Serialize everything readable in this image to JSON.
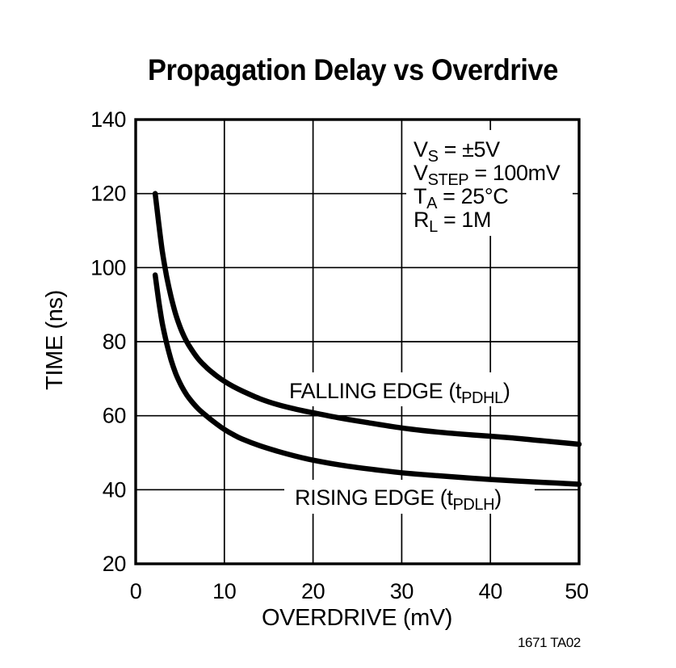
{
  "page": {
    "background": "#ffffff",
    "ink": "#000000"
  },
  "title": "Propagation Delay vs Overdrive",
  "footer_code": "1671 TA02",
  "conditions": [
    {
      "main": "V",
      "sub": "S",
      "rest": " = ±5V"
    },
    {
      "main": "V",
      "sub": "STEP",
      "rest": " = 100mV"
    },
    {
      "main": "T",
      "sub": "A",
      "rest": " = 25°C"
    },
    {
      "main": "R",
      "sub": "L",
      "rest": " = 1M"
    }
  ],
  "chart_data": {
    "type": "line",
    "title": "Propagation Delay vs Overdrive",
    "xlabel": "OVERDRIVE (mV)",
    "ylabel": "TIME (ns)",
    "xlim": [
      0,
      50
    ],
    "ylim": [
      20,
      140
    ],
    "xticks": [
      0,
      10,
      20,
      30,
      40,
      50
    ],
    "yticks": [
      20,
      40,
      60,
      80,
      100,
      120,
      140
    ],
    "grid": true,
    "legend_position": "inline-curve-labels",
    "line_color": "#000000",
    "series": [
      {
        "name": "FALLING EDGE (tPDHL)",
        "label": {
          "pre": "FALLING EDGE (t",
          "sub": "PDHL",
          "post": ")"
        },
        "points": [
          [
            2.2,
            120
          ],
          [
            2.6,
            112
          ],
          [
            3,
            104.5
          ],
          [
            3.5,
            97.5
          ],
          [
            4,
            92
          ],
          [
            4.5,
            87.5
          ],
          [
            5,
            84
          ],
          [
            5.5,
            81.2
          ],
          [
            6,
            79
          ],
          [
            7,
            75.5
          ],
          [
            8,
            73
          ],
          [
            9,
            71
          ],
          [
            10,
            69.3
          ],
          [
            11,
            67.9
          ],
          [
            12,
            66.7
          ],
          [
            14,
            64.6
          ],
          [
            16,
            63
          ],
          [
            18,
            61.8
          ],
          [
            20,
            60.8
          ],
          [
            23,
            59.4
          ],
          [
            26,
            58.2
          ],
          [
            30,
            56.7
          ],
          [
            34,
            55.6
          ],
          [
            38,
            54.8
          ],
          [
            42,
            54.1
          ],
          [
            46,
            53.2
          ],
          [
            50,
            52.3
          ]
        ]
      },
      {
        "name": "RISING EDGE (tPDLH)",
        "label": {
          "pre": "RISING EDGE (t",
          "sub": "PDLH",
          "post": ")"
        },
        "points": [
          [
            2.2,
            98
          ],
          [
            2.6,
            91
          ],
          [
            3,
            85
          ],
          [
            3.5,
            79.5
          ],
          [
            4,
            75
          ],
          [
            4.5,
            71.5
          ],
          [
            5,
            68.8
          ],
          [
            5.5,
            66.6
          ],
          [
            6,
            64.8
          ],
          [
            7,
            62
          ],
          [
            8,
            59.9
          ],
          [
            9,
            58
          ],
          [
            10,
            56.3
          ],
          [
            11,
            54.9
          ],
          [
            12,
            53.7
          ],
          [
            14,
            51.9
          ],
          [
            16,
            50.4
          ],
          [
            18,
            49.1
          ],
          [
            20,
            48
          ],
          [
            23,
            46.7
          ],
          [
            26,
            45.7
          ],
          [
            30,
            44.6
          ],
          [
            34,
            43.8
          ],
          [
            38,
            43.1
          ],
          [
            42,
            42.5
          ],
          [
            46,
            42
          ],
          [
            50,
            41.5
          ]
        ]
      }
    ]
  }
}
